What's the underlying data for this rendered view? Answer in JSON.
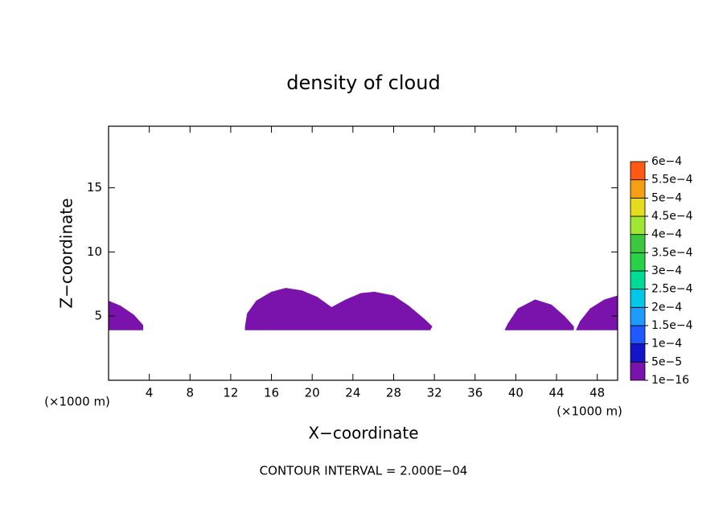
{
  "chart_data": {
    "type": "contour",
    "title": "density of cloud",
    "x_label": "X−coordinate",
    "y_label": "Z−coordinate",
    "x_unit": "(×1000 m)",
    "footer": "CONTOUR INTERVAL = 2.000E−04",
    "xlim": [
      0,
      50
    ],
    "ylim": [
      0,
      19.8
    ],
    "xticks": [
      4,
      8,
      12,
      16,
      20,
      24,
      28,
      32,
      36,
      40,
      44,
      48
    ],
    "yticks": [
      5,
      10,
      15
    ],
    "regions": [
      {
        "x": [
          0,
          1.2,
          2.5,
          3.4,
          3.4,
          0
        ],
        "y": [
          6.2,
          5.8,
          5.1,
          4.3,
          3.9,
          3.9
        ]
      },
      {
        "x": [
          13.4,
          13.6,
          14.5,
          16,
          17.4,
          19,
          20.5,
          21.9,
          23.3,
          24.8,
          26.1,
          28,
          29.5,
          31,
          31.8,
          31.6,
          13.4
        ],
        "y": [
          4.2,
          5.2,
          6.2,
          6.9,
          7.2,
          7.0,
          6.5,
          5.7,
          6.3,
          6.8,
          6.9,
          6.6,
          5.8,
          4.8,
          4.2,
          3.9,
          3.9
        ]
      },
      {
        "x": [
          38.9,
          39.2,
          40.2,
          41.9,
          43.5,
          44.8,
          45.7,
          45.7
        ],
        "y": [
          3.9,
          4.4,
          5.6,
          6.3,
          5.9,
          5.0,
          4.2,
          3.9
        ]
      },
      {
        "x": [
          45.9,
          46.3,
          47.3,
          48.7,
          50,
          50
        ],
        "y": [
          3.9,
          4.6,
          5.6,
          6.3,
          6.6,
          3.9
        ]
      }
    ],
    "colorbar": {
      "levels": [
        {
          "value": 1e-16,
          "label": "1e−16"
        },
        {
          "value": 5e-05,
          "label": "5e−5"
        },
        {
          "value": 0.0001,
          "label": "1e−4"
        },
        {
          "value": 0.00015,
          "label": "1.5e−4"
        },
        {
          "value": 0.0002,
          "label": "2e−4"
        },
        {
          "value": 0.00025,
          "label": "2.5e−4"
        },
        {
          "value": 0.0003,
          "label": "3e−4"
        },
        {
          "value": 0.00035,
          "label": "3.5e−4"
        },
        {
          "value": 0.0004,
          "label": "4e−4"
        },
        {
          "value": 0.00045,
          "label": "4.5e−4"
        },
        {
          "value": 0.0005,
          "label": "5e−4"
        },
        {
          "value": 0.00055,
          "label": "5.5e−4"
        },
        {
          "value": 0.0006,
          "label": "6e−4"
        }
      ],
      "colors": [
        "#7a12ac",
        "#1414c8",
        "#1e5aff",
        "#1e9bff",
        "#00c8e6",
        "#00dc96",
        "#28d246",
        "#3cc83c",
        "#a0e632",
        "#e6dc1e",
        "#f5a014",
        "#ff5a14",
        "#ff1e1e",
        "#f08c8c"
      ]
    }
  }
}
